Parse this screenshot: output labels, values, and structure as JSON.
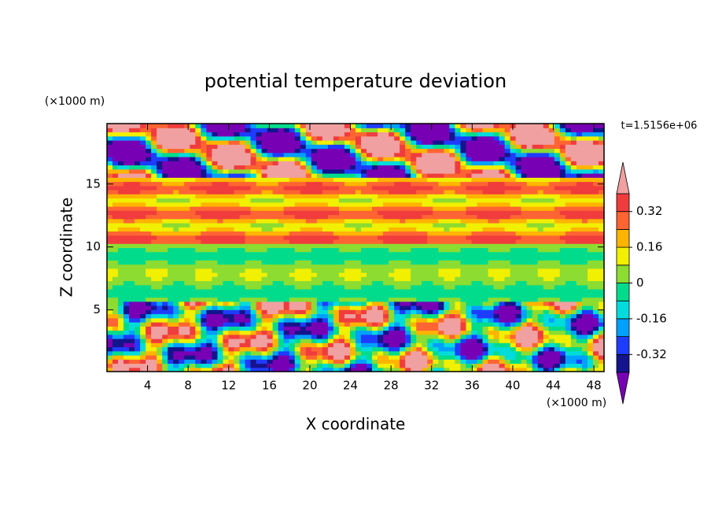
{
  "chart_data": {
    "type": "contour",
    "title": "potential temperature deviation",
    "x_label": "X coordinate",
    "y_label": "Z coordinate",
    "x_unit": "(×1000 m)",
    "y_unit": "(×1000 m)",
    "annotation": "t=1.5156e+06",
    "xlim": [
      0,
      49
    ],
    "xticks": [
      4,
      8,
      12,
      16,
      20,
      24,
      28,
      32,
      36,
      40,
      44,
      48
    ],
    "ylim": [
      0.1,
      19.8
    ],
    "yticks": [
      5,
      10,
      15
    ],
    "colorbar": {
      "levels": [
        -0.4,
        -0.32,
        -0.24,
        -0.16,
        -0.08,
        0,
        0.08,
        0.16,
        0.24,
        0.32,
        0.4
      ],
      "ticks": [
        -0.32,
        -0.16,
        0,
        0.16,
        0.32
      ],
      "colors": [
        "#7800b4",
        "#14148c",
        "#1e3cff",
        "#00a0ff",
        "#00dcdc",
        "#00dc8c",
        "#8cdc32",
        "#f0f000",
        "#ffb400",
        "#ff6432",
        "#f03c3c",
        "#f0a0a0"
      ]
    }
  }
}
